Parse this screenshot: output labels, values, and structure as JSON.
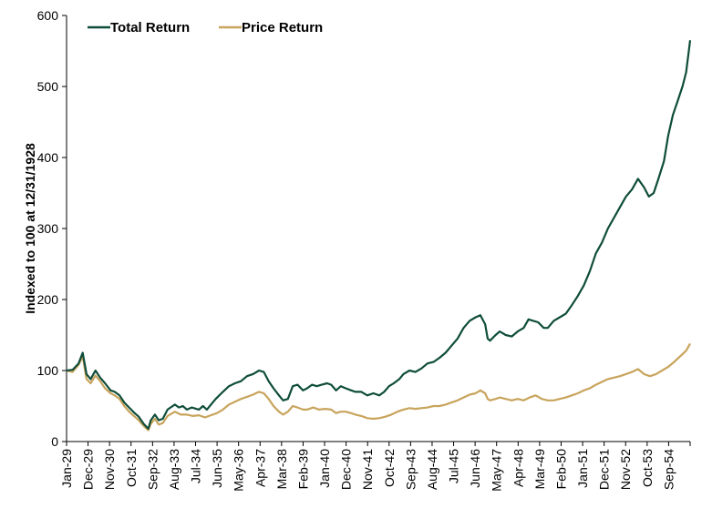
{
  "chart_data": {
    "type": "line",
    "ylabel": "Indexed to 100 at 12/31/1928",
    "ylim": [
      0,
      600
    ],
    "yticks": [
      0,
      100,
      200,
      300,
      400,
      500,
      600
    ],
    "xlim": [
      1929.0,
      1954.917
    ],
    "x_tick_labels": [
      "Jan-29",
      "Dec-29",
      "Nov-30",
      "Oct-31",
      "Sep-32",
      "Aug-33",
      "Jul-34",
      "Jun-35",
      "May-36",
      "Apr-37",
      "Mar-38",
      "Feb-39",
      "Jan-40",
      "Dec-40",
      "Nov-41",
      "Oct-42",
      "Sep-43",
      "Aug-44",
      "Jul-45",
      "Jun-46",
      "May-47",
      "Apr-48",
      "Mar-49",
      "Feb-50",
      "Jan-51",
      "Dec-51",
      "Nov-52",
      "Oct-53",
      "Sep-54"
    ],
    "legend_position": "top-left",
    "grid": false,
    "series": [
      {
        "name": "Total Return",
        "color": "#0f4d3a",
        "x": [
          1929.0,
          1929.25,
          1929.5,
          1929.67,
          1929.83,
          1930.0,
          1930.2,
          1930.4,
          1930.6,
          1930.83,
          1931.0,
          1931.2,
          1931.4,
          1931.6,
          1931.83,
          1932.0,
          1932.2,
          1932.4,
          1932.5,
          1932.67,
          1932.83,
          1933.0,
          1933.2,
          1933.5,
          1933.67,
          1933.83,
          1934.0,
          1934.2,
          1934.5,
          1934.67,
          1934.83,
          1935.0,
          1935.2,
          1935.5,
          1935.75,
          1936.0,
          1936.25,
          1936.5,
          1936.75,
          1937.0,
          1937.2,
          1937.4,
          1937.6,
          1937.83,
          1938.0,
          1938.2,
          1938.4,
          1938.6,
          1938.83,
          1939.0,
          1939.2,
          1939.4,
          1939.6,
          1939.83,
          1940.0,
          1940.2,
          1940.4,
          1940.6,
          1940.83,
          1941.0,
          1941.25,
          1941.5,
          1941.75,
          1942.0,
          1942.2,
          1942.4,
          1942.6,
          1942.83,
          1943.0,
          1943.25,
          1943.5,
          1943.75,
          1944.0,
          1944.25,
          1944.5,
          1944.75,
          1945.0,
          1945.25,
          1945.5,
          1945.75,
          1946.0,
          1946.2,
          1946.4,
          1946.5,
          1946.6,
          1946.83,
          1947.0,
          1947.25,
          1947.5,
          1947.75,
          1948.0,
          1948.2,
          1948.4,
          1948.6,
          1948.83,
          1949.0,
          1949.25,
          1949.5,
          1949.75,
          1950.0,
          1950.25,
          1950.5,
          1950.75,
          1951.0,
          1951.25,
          1951.5,
          1951.75,
          1952.0,
          1952.25,
          1952.5,
          1952.75,
          1953.0,
          1953.2,
          1953.4,
          1953.6,
          1953.83,
          1954.0,
          1954.2,
          1954.4,
          1954.6,
          1954.75,
          1954.917
        ],
        "y": [
          100,
          101,
          110,
          125,
          95,
          88,
          100,
          90,
          82,
          72,
          70,
          65,
          55,
          48,
          40,
          35,
          25,
          18,
          30,
          38,
          30,
          32,
          45,
          52,
          48,
          50,
          45,
          48,
          45,
          50,
          45,
          52,
          60,
          70,
          78,
          82,
          85,
          92,
          95,
          100,
          98,
          85,
          75,
          65,
          58,
          60,
          78,
          80,
          72,
          75,
          80,
          78,
          80,
          82,
          80,
          72,
          78,
          75,
          72,
          70,
          70,
          65,
          68,
          65,
          70,
          78,
          82,
          88,
          95,
          100,
          98,
          103,
          110,
          112,
          118,
          125,
          135,
          145,
          160,
          170,
          175,
          178,
          165,
          145,
          142,
          150,
          155,
          150,
          148,
          155,
          160,
          172,
          170,
          168,
          160,
          160,
          170,
          175,
          180,
          192,
          205,
          220,
          240,
          265,
          280,
          300,
          315,
          330,
          345,
          355,
          370,
          358,
          345,
          350,
          370,
          395,
          430,
          460,
          480,
          500,
          520,
          565
        ]
      },
      {
        "name": "Price Return",
        "color": "#c8a45c",
        "x": [
          1929.0,
          1929.25,
          1929.5,
          1929.67,
          1929.83,
          1930.0,
          1930.2,
          1930.4,
          1930.6,
          1930.83,
          1931.0,
          1931.2,
          1931.4,
          1931.6,
          1931.83,
          1932.0,
          1932.2,
          1932.4,
          1932.5,
          1932.67,
          1932.83,
          1933.0,
          1933.2,
          1933.5,
          1933.75,
          1934.0,
          1934.25,
          1934.5,
          1934.75,
          1935.0,
          1935.25,
          1935.5,
          1935.75,
          1936.0,
          1936.25,
          1936.5,
          1936.75,
          1937.0,
          1937.2,
          1937.4,
          1937.6,
          1937.83,
          1938.0,
          1938.2,
          1938.4,
          1938.6,
          1938.83,
          1939.0,
          1939.25,
          1939.5,
          1939.75,
          1940.0,
          1940.2,
          1940.4,
          1940.6,
          1940.83,
          1941.0,
          1941.25,
          1941.5,
          1941.75,
          1942.0,
          1942.25,
          1942.5,
          1942.75,
          1943.0,
          1943.25,
          1943.5,
          1943.75,
          1944.0,
          1944.25,
          1944.5,
          1944.75,
          1945.0,
          1945.25,
          1945.5,
          1945.75,
          1946.0,
          1946.2,
          1946.4,
          1946.5,
          1946.6,
          1946.83,
          1947.0,
          1947.25,
          1947.5,
          1947.75,
          1948.0,
          1948.25,
          1948.5,
          1948.75,
          1949.0,
          1949.25,
          1949.5,
          1949.75,
          1950.0,
          1950.25,
          1950.5,
          1950.75,
          1951.0,
          1951.25,
          1951.5,
          1951.75,
          1952.0,
          1952.25,
          1952.5,
          1952.75,
          1953.0,
          1953.25,
          1953.5,
          1953.75,
          1954.0,
          1954.25,
          1954.5,
          1954.75,
          1954.917
        ],
        "y": [
          100,
          98,
          108,
          120,
          88,
          82,
          93,
          85,
          75,
          68,
          65,
          60,
          50,
          42,
          35,
          30,
          22,
          16,
          25,
          32,
          24,
          26,
          36,
          42,
          38,
          38,
          36,
          37,
          34,
          37,
          40,
          45,
          52,
          56,
          60,
          63,
          66,
          70,
          68,
          60,
          50,
          42,
          38,
          42,
          50,
          48,
          45,
          45,
          48,
          45,
          46,
          45,
          40,
          42,
          42,
          40,
          38,
          36,
          33,
          32,
          33,
          35,
          38,
          42,
          45,
          47,
          46,
          47,
          48,
          50,
          50,
          52,
          55,
          58,
          62,
          66,
          68,
          72,
          68,
          60,
          58,
          60,
          62,
          60,
          58,
          60,
          58,
          62,
          65,
          60,
          58,
          58,
          60,
          62,
          65,
          68,
          72,
          75,
          80,
          84,
          88,
          90,
          92,
          95,
          98,
          102,
          95,
          92,
          95,
          100,
          105,
          112,
          120,
          128,
          138
        ]
      }
    ]
  }
}
